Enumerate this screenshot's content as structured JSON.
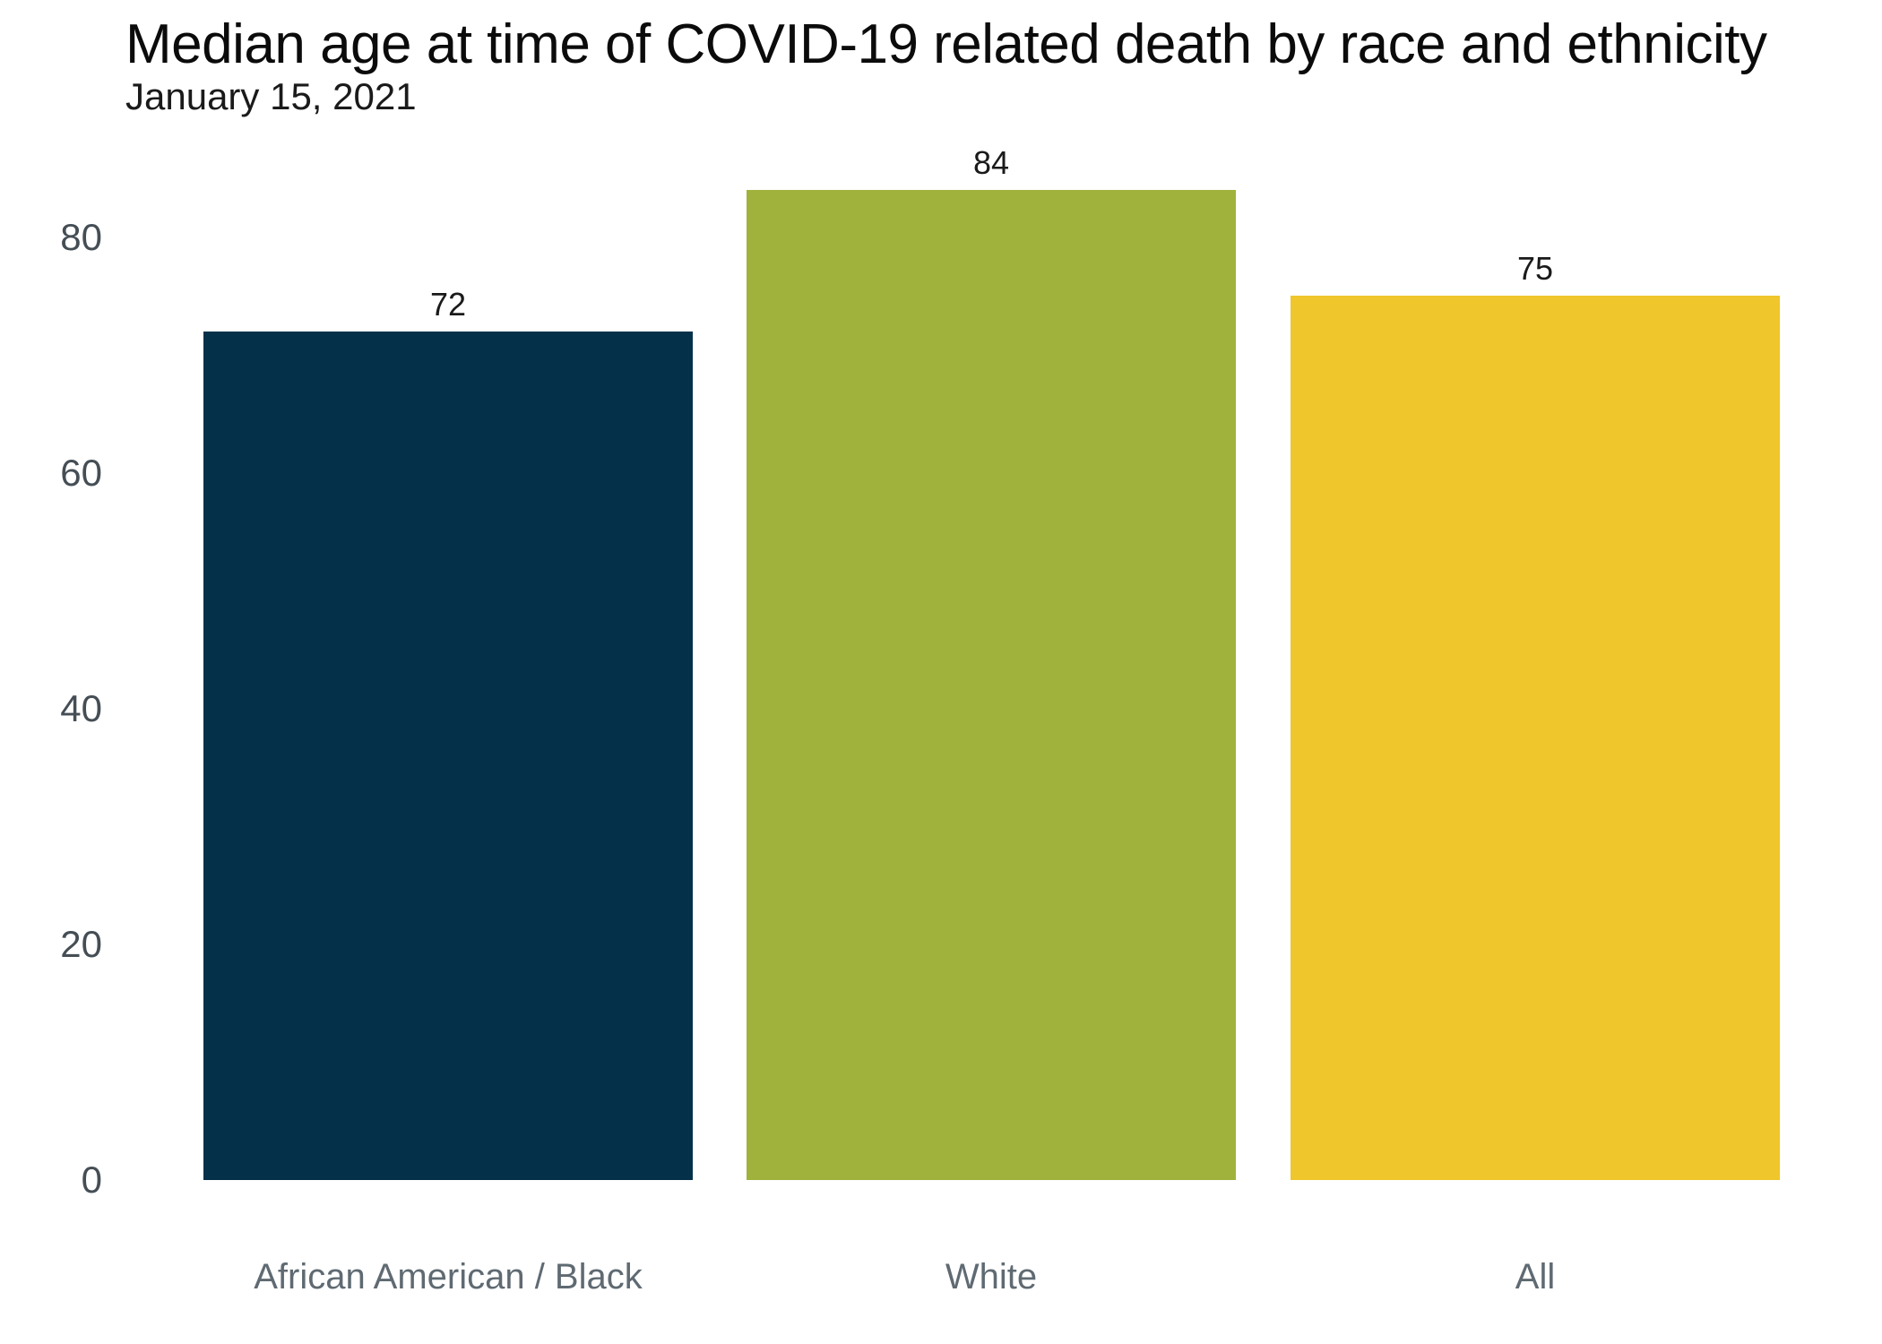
{
  "header": {
    "title": "Median age at time of COVID-19 related death by race and ethnicity",
    "subtitle": "January 15, 2021"
  },
  "chart_data": {
    "type": "bar",
    "title": "Median age at time of COVID-19 related death by race and ethnicity",
    "subtitle": "January 15, 2021",
    "categories": [
      "African American / Black",
      "White",
      "All"
    ],
    "values": [
      72,
      84,
      75
    ],
    "value_labels": [
      "72",
      "84",
      "75"
    ],
    "bar_colors": [
      "#04304a",
      "#a0b23c",
      "#efc62c"
    ],
    "y_ticks": [
      0,
      20,
      40,
      60,
      80
    ],
    "ylim": [
      0,
      90
    ],
    "xlabel": "",
    "ylabel": "",
    "grid": false,
    "legend_position": "none",
    "colors": {
      "background": "#ffffff",
      "title_text": "#0b0b0b",
      "subtitle_text": "#1a1a1a",
      "axis_tick_text": "#454e55",
      "category_text": "#5f6a72",
      "value_label_text": "#1a1a1a"
    }
  }
}
